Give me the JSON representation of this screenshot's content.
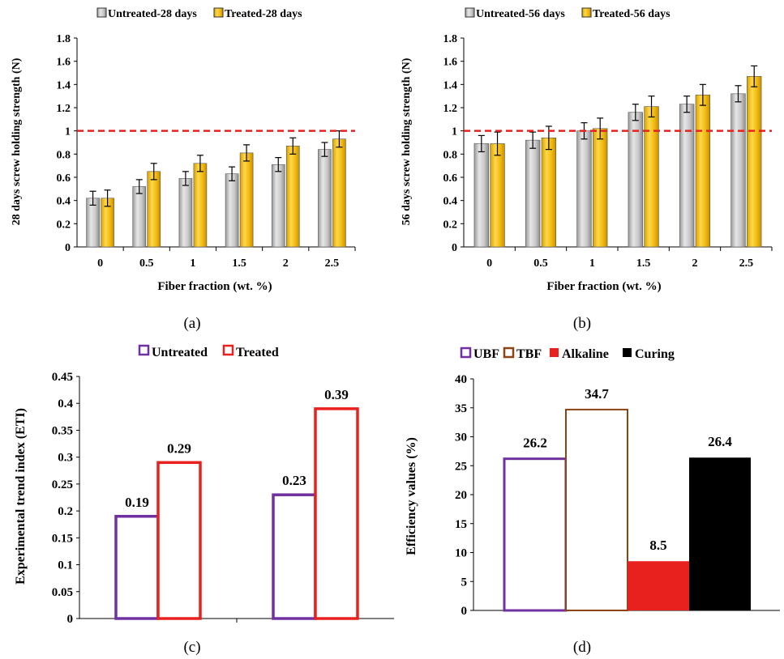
{
  "panel_labels": [
    "(a)",
    "(b)",
    "(c)",
    "(d)"
  ],
  "colors": {
    "untreated_bar": "#c8c8c8",
    "treated_bar": "#f2b90f",
    "reference_line": "#e8201e",
    "untreated_outline": "#7030a0",
    "treated_outline": "#e8201e",
    "ubf_outline": "#7030a0",
    "tbf_outline": "#8b4513",
    "alkaline_fill": "#e8201e",
    "curing_fill": "#000000"
  },
  "chart_data": [
    {
      "id": "a",
      "type": "bar",
      "categories": [
        "0",
        "0.5",
        "1",
        "1.5",
        "2",
        "2.5"
      ],
      "series": [
        {
          "name": "Untreated-28 days",
          "values": [
            0.42,
            0.52,
            0.59,
            0.63,
            0.71,
            0.84
          ],
          "errors": [
            0.06,
            0.06,
            0.06,
            0.06,
            0.06,
            0.06
          ]
        },
        {
          "name": "Treated-28 days",
          "values": [
            0.42,
            0.65,
            0.72,
            0.81,
            0.87,
            0.93
          ],
          "errors": [
            0.07,
            0.07,
            0.07,
            0.07,
            0.07,
            0.07
          ]
        }
      ],
      "reference_line": 1,
      "xlabel": "Fiber fraction (wt. %)",
      "ylabel": "28 days screw holding strength (N)",
      "ylim": [
        0,
        1.8
      ],
      "yticks": [
        "0",
        "0.2",
        "0.4",
        "0.6",
        "0.8",
        "1",
        "1.2",
        "1.4",
        "1.6",
        "1.8"
      ],
      "legend": "top"
    },
    {
      "id": "b",
      "type": "bar",
      "categories": [
        "0",
        "0.5",
        "1",
        "1.5",
        "2",
        "2.5"
      ],
      "series": [
        {
          "name": "Untreated-56 days",
          "values": [
            0.89,
            0.92,
            1.0,
            1.16,
            1.23,
            1.32
          ],
          "errors": [
            0.07,
            0.07,
            0.07,
            0.07,
            0.07,
            0.07
          ]
        },
        {
          "name": "Treated-56 days",
          "values": [
            0.89,
            0.94,
            1.02,
            1.21,
            1.31,
            1.47
          ],
          "errors": [
            0.1,
            0.1,
            0.09,
            0.09,
            0.09,
            0.09
          ]
        }
      ],
      "reference_line": 1,
      "xlabel": "Fiber fraction (wt. %)",
      "ylabel": "56 days screw holding strength (N)",
      "ylim": [
        0,
        1.8
      ],
      "yticks": [
        "0",
        "0.2",
        "0.4",
        "0.6",
        "0.8",
        "1",
        "1.2",
        "1.4",
        "1.6",
        "1.8"
      ],
      "legend": "top"
    },
    {
      "id": "c",
      "type": "bar",
      "categories": [
        "",
        ""
      ],
      "series": [
        {
          "name": "Untreated",
          "values": [
            0.19,
            0.23
          ],
          "labels": [
            "0.19",
            "0.23"
          ]
        },
        {
          "name": "Treated",
          "values": [
            0.29,
            0.39
          ],
          "labels": [
            "0.29",
            "0.39"
          ]
        }
      ],
      "ylabel": "Experimental trend index (ETI)",
      "ylim": [
        0,
        0.45
      ],
      "yticks": [
        "0",
        "0.05",
        "0.1",
        "0.15",
        "0.2",
        "0.25",
        "0.3",
        "0.35",
        "0.4",
        "0.45"
      ],
      "legend": "top"
    },
    {
      "id": "d",
      "type": "bar",
      "categories": [
        "UBF",
        "TBF",
        "Alkaline",
        "Curing"
      ],
      "values": [
        26.2,
        34.7,
        8.5,
        26.4
      ],
      "labels": [
        "26.2",
        "34.7",
        "8.5",
        "26.4"
      ],
      "ylabel": "Efficiency values (%)",
      "ylim": [
        0,
        40
      ],
      "yticks": [
        "0",
        "5",
        "10",
        "15",
        "20",
        "25",
        "30",
        "35",
        "40"
      ],
      "legend": "top"
    }
  ]
}
